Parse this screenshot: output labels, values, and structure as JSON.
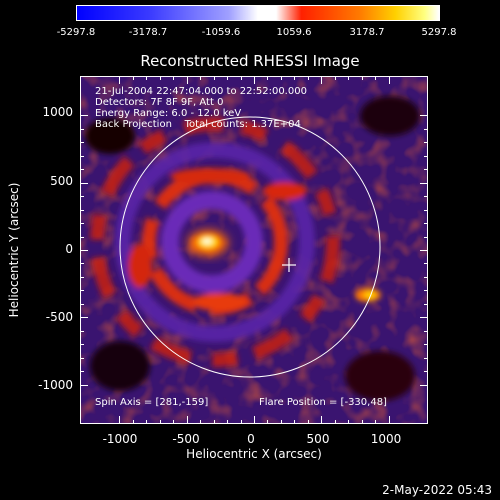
{
  "colorbar": {
    "ticks": [
      "-5297.8",
      "-3178.7",
      "-1059.6",
      "1059.6",
      "3178.7",
      "5297.8"
    ]
  },
  "plot": {
    "title": "Reconstructed RHESSI Image",
    "info_lines": [
      "21-Jul-2004 22:47:04.000 to 22:52:00.000",
      "Detectors: 7F 8F 9F, Att 0",
      "Energy Range: 6.0 - 12.0 keV",
      "Back Projection    Total counts: 1.37E+04"
    ],
    "spin_axis": "Spin Axis = [281,-159]",
    "flare_position": "Flare Position = [-330,48]",
    "xlabel": "Heliocentric X (arcsec)",
    "ylabel": "Heliocentric Y (arcsec)",
    "x_ticks": [
      "-1000",
      "-500",
      "0",
      "500",
      "1000"
    ],
    "y_ticks": [
      "1000",
      "500",
      "0",
      "-500",
      "-1000"
    ],
    "x_range": [
      -1290,
      1290
    ],
    "y_range": [
      -1290,
      1290
    ]
  },
  "footer": {
    "timestamp": "2-May-2022 05:43"
  }
}
